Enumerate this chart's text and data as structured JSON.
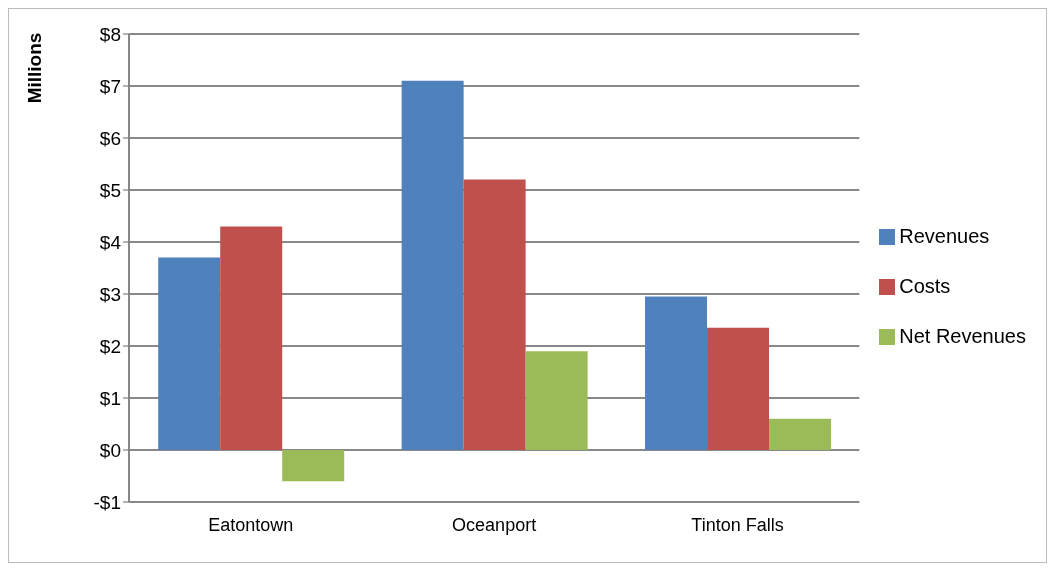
{
  "chart_data": {
    "type": "bar",
    "ylabel": "Millions",
    "categories": [
      "Eatontown",
      "Oceanport",
      "Tinton Falls"
    ],
    "series": [
      {
        "name": "Revenues",
        "color": "#4f81bd",
        "values": [
          3.7,
          7.1,
          2.95
        ]
      },
      {
        "name": "Costs",
        "color": "#c0504d",
        "values": [
          4.3,
          5.2,
          2.35
        ]
      },
      {
        "name": "Net Revenues",
        "color": "#9bbb59",
        "values": [
          -0.6,
          1.9,
          0.6
        ]
      }
    ],
    "ylim": [
      -1,
      8
    ],
    "yticks": [
      {
        "value": -1,
        "label": "-$1"
      },
      {
        "value": 0,
        "label": "$0"
      },
      {
        "value": 1,
        "label": "$1"
      },
      {
        "value": 2,
        "label": "$2"
      },
      {
        "value": 3,
        "label": "$3"
      },
      {
        "value": 4,
        "label": "$4"
      },
      {
        "value": 5,
        "label": "$5"
      },
      {
        "value": 6,
        "label": "$6"
      },
      {
        "value": 7,
        "label": "$7"
      },
      {
        "value": 8,
        "label": "$8"
      }
    ],
    "grid": "y",
    "legend": "right"
  }
}
